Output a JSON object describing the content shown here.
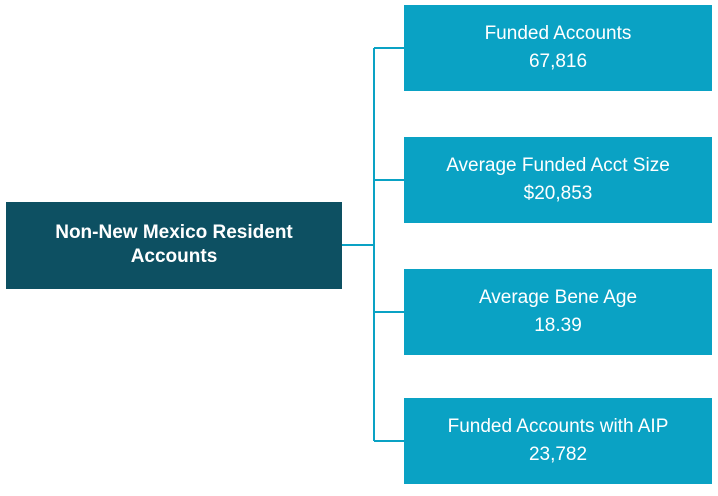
{
  "root": {
    "label_lines": [
      "Non-New Mexico Resident",
      "Accounts"
    ]
  },
  "nodes": [
    {
      "label": "Funded Accounts",
      "value": "67,816"
    },
    {
      "label": "Average Funded Acct Size",
      "value": "$20,853"
    },
    {
      "label": "Average Bene Age",
      "value": "18.39"
    },
    {
      "label": "Funded Accounts with AIP",
      "value": "23,782"
    }
  ]
}
